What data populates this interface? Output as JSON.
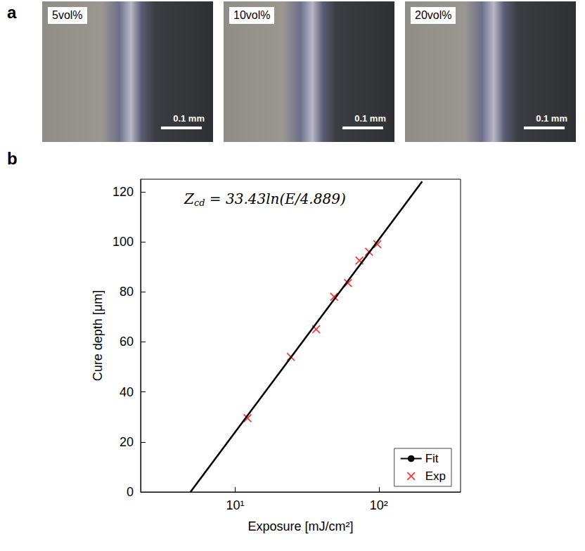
{
  "panel_labels": [
    "a",
    "b"
  ],
  "micrographs": [
    {
      "label": "5vol%",
      "scale_bar": "0.1 mm"
    },
    {
      "label": "10vol%",
      "scale_bar": "0.1 mm"
    },
    {
      "label": "20vol%",
      "scale_bar": "0.1 mm"
    }
  ],
  "chart_data": {
    "type": "scatter",
    "x_label": "Exposure [mJ/cm²]",
    "y_label": "Cure depth [μm]",
    "annotation": [
      {
        "text": "Z",
        "subscript": "cd"
      },
      {
        "text": " = 33.43ln(E/4.889)"
      }
    ],
    "log": "x",
    "grid": false,
    "legend": "lower right",
    "xlim": [
      2.2,
      370
    ],
    "xticks": [
      {
        "value": 10,
        "label": "10¹"
      },
      {
        "value": 100,
        "label": "10²"
      }
    ],
    "ylim": [
      0,
      125
    ],
    "yticks": [
      0,
      20,
      40,
      60,
      80,
      100,
      120
    ],
    "series": [
      {
        "name": "Fit",
        "type": "line",
        "color": "#000000",
        "line_style": "solid",
        "x": [
          4.889,
          200
        ],
        "values": [
          0,
          124.1
        ]
      },
      {
        "name": "Exp",
        "type": "scatter",
        "color": "#ff0000",
        "marker": "x",
        "x": [
          12.2,
          24.4,
          36.6,
          48.8,
          61,
          73.2,
          85.4,
          97.6
        ],
        "values": [
          29.5,
          54,
          65,
          78,
          83.5,
          92.5,
          96,
          99
        ]
      }
    ]
  }
}
